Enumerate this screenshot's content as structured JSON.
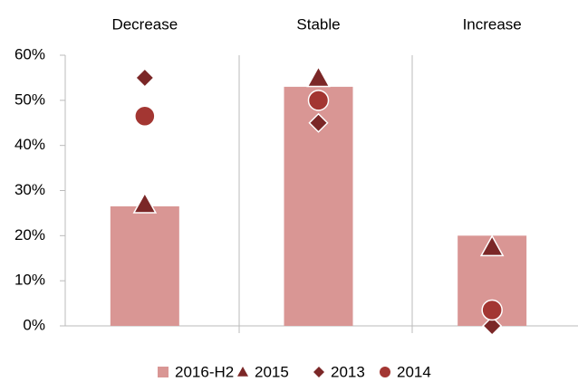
{
  "chart_data": {
    "type": "bar",
    "categories": [
      "Decrease",
      "Stable",
      "Increase"
    ],
    "series": [
      {
        "name": "2016-H2",
        "marker": "bar",
        "color": "#d99694",
        "values": [
          26.5,
          53,
          20
        ]
      },
      {
        "name": "2015",
        "marker": "triangle",
        "color": "#7b2727",
        "values": [
          27,
          55,
          17.5
        ]
      },
      {
        "name": "2013",
        "marker": "diamond",
        "color": "#7b2727",
        "values": [
          55,
          45,
          0
        ]
      },
      {
        "name": "2014",
        "marker": "circle",
        "color": "#a33632",
        "values": [
          46.5,
          50,
          3.5
        ]
      }
    ],
    "ylim": [
      0,
      60
    ],
    "yticks": [
      {
        "value": 0,
        "label": "0%"
      },
      {
        "value": 10,
        "label": "10%"
      },
      {
        "value": 20,
        "label": "20%"
      },
      {
        "value": 30,
        "label": "30%"
      },
      {
        "value": 40,
        "label": "40%"
      },
      {
        "value": 50,
        "label": "50%"
      },
      {
        "value": 60,
        "label": "60%"
      }
    ],
    "legend": "bottom"
  }
}
